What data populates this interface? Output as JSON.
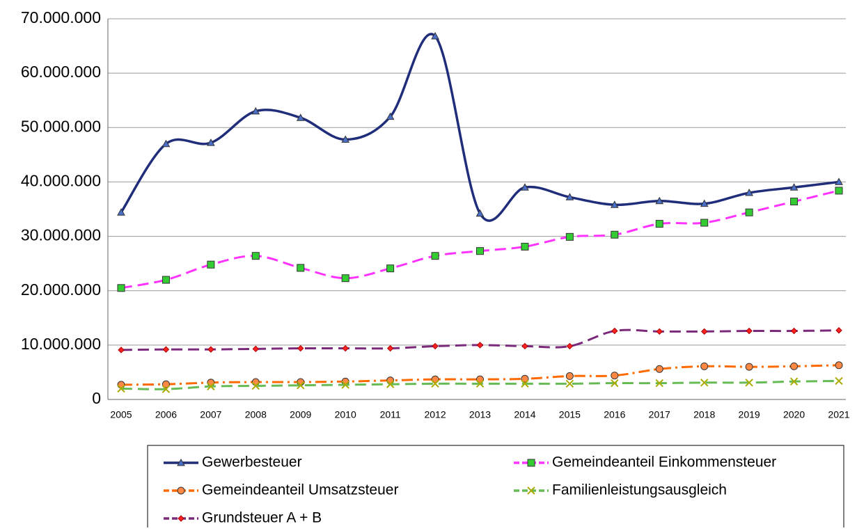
{
  "chart_data": {
    "type": "line",
    "categories": [
      "2005",
      "2006",
      "2007",
      "2008",
      "2009",
      "2010",
      "2011",
      "2012",
      "2013",
      "2014",
      "2015",
      "2016",
      "2017",
      "2018",
      "2019",
      "2020",
      "2021"
    ],
    "ylim": [
      0,
      70000000
    ],
    "yticks": [
      0,
      {
        "value": 10000000,
        "label": "10.000.000"
      },
      {
        "value": 20000000,
        "label": "20.000.000"
      },
      {
        "value": 30000000,
        "label": "30.000.000"
      },
      {
        "value": 40000000,
        "label": "40.000.000"
      },
      {
        "value": 50000000,
        "label": "50.000.000"
      },
      {
        "value": 60000000,
        "label": "60.000.000"
      },
      {
        "value": 70000000,
        "label": "70.000.000"
      }
    ],
    "grid": true,
    "legend": "bottom",
    "series": [
      {
        "name": "Gewerbesteuer",
        "color": "#1f2d7a",
        "marker": "triangle",
        "line_style": "solid",
        "values": [
          34400000,
          47000000,
          47200000,
          53000000,
          51800000,
          47800000,
          52000000,
          66800000,
          34200000,
          39000000,
          37200000,
          35800000,
          36500000,
          36000000,
          38000000,
          39000000,
          40000000
        ]
      },
      {
        "name": "Gemeindeanteil Einkommensteuer",
        "color": "#ff33ff",
        "marker": "square",
        "line_style": "dashed",
        "values": [
          20500000,
          22000000,
          24800000,
          26400000,
          24200000,
          22300000,
          24100000,
          26400000,
          27300000,
          28100000,
          29900000,
          30300000,
          32300000,
          32500000,
          34400000,
          36400000,
          38400000
        ]
      },
      {
        "name": "Gemeindeanteil Umsatzsteuer",
        "color": "#ff6a00",
        "marker": "circle",
        "line_style": "dashdot",
        "values": [
          2700000,
          2800000,
          3100000,
          3200000,
          3200000,
          3300000,
          3500000,
          3700000,
          3700000,
          3800000,
          4300000,
          4400000,
          5600000,
          6100000,
          6000000,
          6100000,
          6300000
        ]
      },
      {
        "name": "Familienleistungsausgleich",
        "color": "#66bb55",
        "marker": "x",
        "line_style": "dashed",
        "values": [
          2000000,
          1900000,
          2400000,
          2500000,
          2600000,
          2700000,
          2800000,
          2900000,
          2900000,
          2900000,
          2900000,
          3000000,
          3000000,
          3100000,
          3100000,
          3300000,
          3400000
        ]
      },
      {
        "name": "Grundsteuer A + B",
        "color": "#7b2a7b",
        "marker": "diamond",
        "line_style": "dashed",
        "values": [
          9100000,
          9200000,
          9200000,
          9300000,
          9400000,
          9400000,
          9400000,
          9800000,
          10000000,
          9800000,
          9800000,
          12600000,
          12500000,
          12500000,
          12600000,
          12600000,
          12700000
        ]
      }
    ]
  }
}
